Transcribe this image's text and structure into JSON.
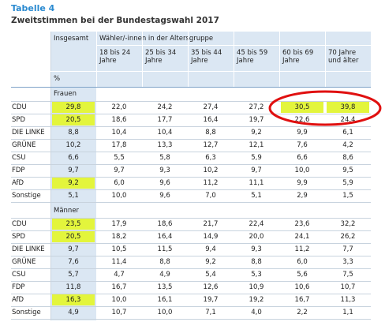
{
  "header": {
    "title": "Tabelle 4",
    "subtitle": "Zweitstimmen bei der Bundestagswahl 2017"
  },
  "table": {
    "columns": {
      "total": "Insgesamt",
      "group": "Wähler/-innen in der Altersgruppe",
      "ages": [
        "18 bis 24 Jahre",
        "25 bis 34 Jahre",
        "35 bis 44 Jahre",
        "45 bis 59 Jahre",
        "60 bis 69 Jahre",
        "70 Jahre und älter"
      ]
    },
    "unit": "%",
    "sections": [
      {
        "label": "Frauen",
        "rows": [
          {
            "party": "CDU",
            "values": [
              "29,8",
              "22,0",
              "24,2",
              "27,4",
              "27,2",
              "30,5",
              "39,8"
            ]
          },
          {
            "party": "SPD",
            "values": [
              "20,5",
              "18,6",
              "17,7",
              "16,4",
              "19,7",
              "22,6",
              "24,4"
            ]
          },
          {
            "party": "DIE LINKE",
            "values": [
              "8,8",
              "10,4",
              "10,4",
              "8,8",
              "9,2",
              "9,9",
              "6,1"
            ]
          },
          {
            "party": "GRÜNE",
            "values": [
              "10,2",
              "17,8",
              "13,3",
              "12,7",
              "12,1",
              "7,6",
              "4,2"
            ]
          },
          {
            "party": "CSU",
            "values": [
              "6,6",
              "5,5",
              "5,8",
              "6,3",
              "5,9",
              "6,6",
              "8,6"
            ]
          },
          {
            "party": "FDP",
            "values": [
              "9,7",
              "9,7",
              "9,3",
              "10,2",
              "9,7",
              "10,0",
              "9,5"
            ]
          },
          {
            "party": "AfD",
            "values": [
              "9,2",
              "6,0",
              "9,6",
              "11,2",
              "11,1",
              "9,9",
              "5,9"
            ]
          },
          {
            "party": "Sonstige",
            "values": [
              "5,1",
              "10,0",
              "9,6",
              "7,0",
              "5,1",
              "2,9",
              "1,5"
            ]
          }
        ]
      },
      {
        "label": "Männer",
        "rows": [
          {
            "party": "CDU",
            "values": [
              "23,5",
              "17,9",
              "18,6",
              "21,7",
              "22,4",
              "23,6",
              "32,2"
            ]
          },
          {
            "party": "SPD",
            "values": [
              "20,5",
              "18,2",
              "16,4",
              "14,9",
              "20,0",
              "24,1",
              "26,2"
            ]
          },
          {
            "party": "DIE LINKE",
            "values": [
              "9,7",
              "10,5",
              "11,5",
              "9,4",
              "9,3",
              "11,2",
              "7,7"
            ]
          },
          {
            "party": "GRÜNE",
            "values": [
              "7,6",
              "11,4",
              "8,8",
              "9,2",
              "8,8",
              "6,0",
              "3,3"
            ]
          },
          {
            "party": "CSU",
            "values": [
              "5,7",
              "4,7",
              "4,9",
              "5,4",
              "5,3",
              "5,6",
              "7,5"
            ]
          },
          {
            "party": "FDP",
            "values": [
              "11,8",
              "16,7",
              "13,5",
              "12,6",
              "10,9",
              "10,6",
              "10,7"
            ]
          },
          {
            "party": "AfD",
            "values": [
              "16,3",
              "10,0",
              "16,1",
              "19,7",
              "19,2",
              "16,7",
              "11,3"
            ]
          },
          {
            "party": "Sonstige",
            "values": [
              "4,9",
              "10,7",
              "10,0",
              "7,1",
              "4,0",
              "2,2",
              "1,1"
            ]
          }
        ]
      }
    ]
  }
}
